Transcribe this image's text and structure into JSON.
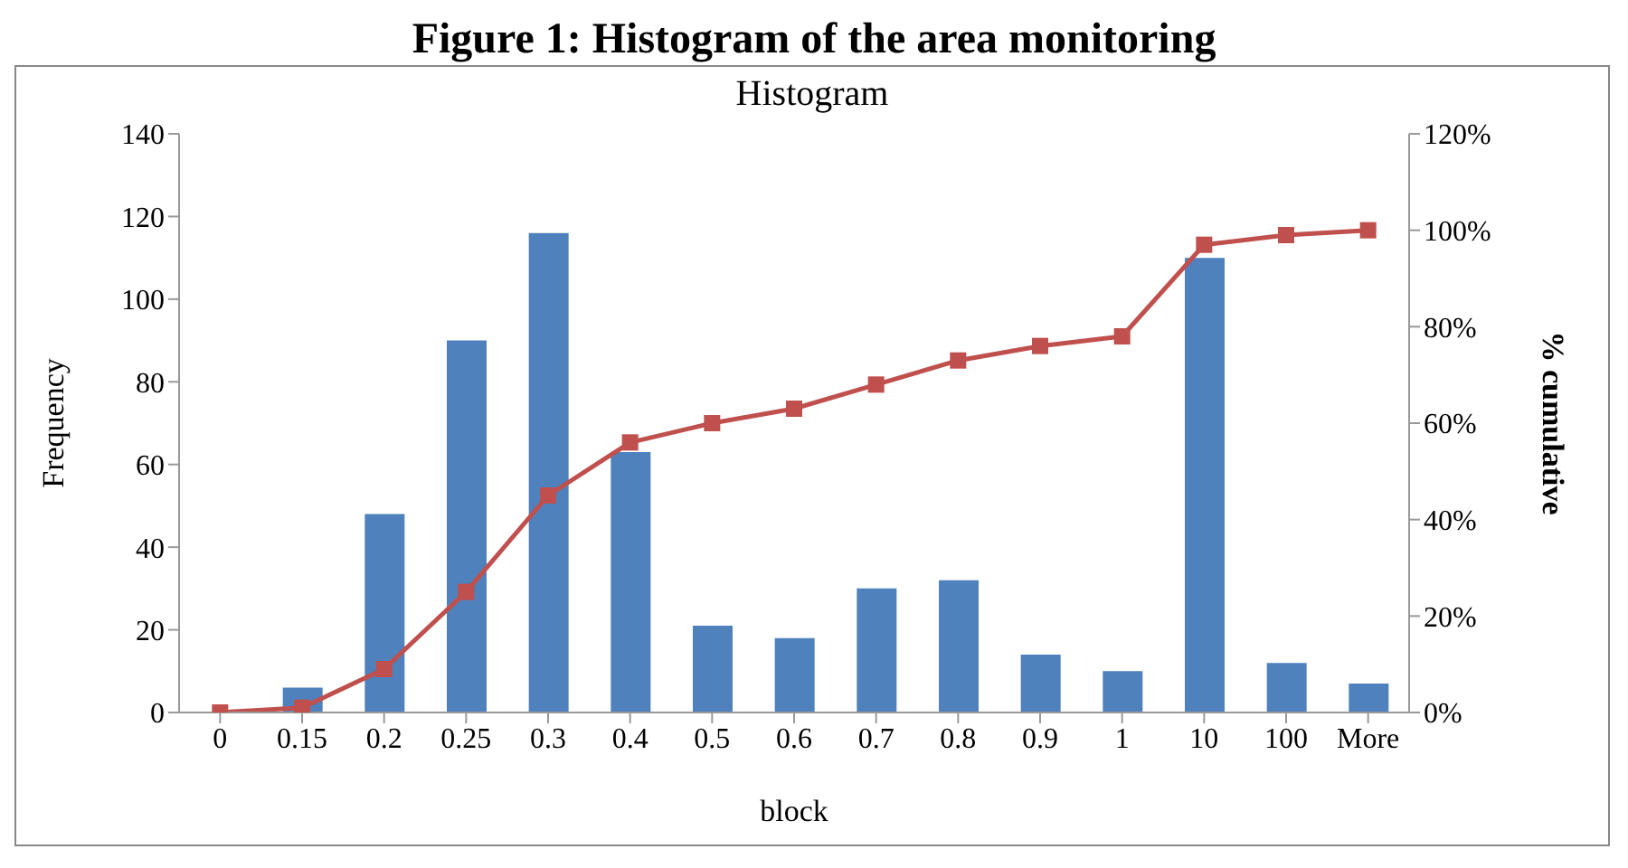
{
  "chart_data": {
    "type": "bar",
    "title": "Figure 1: Histogram of the area monitoring",
    "subtitle": "Histogram",
    "xlabel": "block",
    "ylabel": "Frequency",
    "y2label": "% cumulative",
    "categories": [
      "0",
      "0.15",
      "0.2",
      "0.25",
      "0.3",
      "0.4",
      "0.5",
      "0.6",
      "0.7",
      "0.8",
      "0.9",
      "1",
      "10",
      "100",
      "More"
    ],
    "series": [
      {
        "color": "#4f81bd",
        "values": [
          0,
          6,
          48,
          90,
          116,
          63,
          21,
          18,
          30,
          32,
          14,
          10,
          110,
          12,
          7
        ]
      },
      {
        "type": "line",
        "axis": "y2",
        "color": "#c0504d",
        "marker": "square",
        "values": [
          0,
          1,
          9,
          25,
          45,
          56,
          60,
          63,
          68,
          73,
          76,
          78,
          97,
          99,
          100
        ]
      }
    ],
    "ylim": [
      0,
      140
    ],
    "yticks": [
      0,
      20,
      40,
      60,
      80,
      100,
      120,
      140
    ],
    "y2lim": [
      0,
      120
    ],
    "y2ticks": [
      {
        "value": 0,
        "label": "0%"
      },
      {
        "value": 20,
        "label": "20%"
      },
      {
        "value": 40,
        "label": "40%"
      },
      {
        "value": 60,
        "label": "60%"
      },
      {
        "value": 80,
        "label": "80%"
      },
      {
        "value": 100,
        "label": "100%"
      },
      {
        "value": 120,
        "label": "120%"
      }
    ],
    "grid": false,
    "legend": false
  }
}
